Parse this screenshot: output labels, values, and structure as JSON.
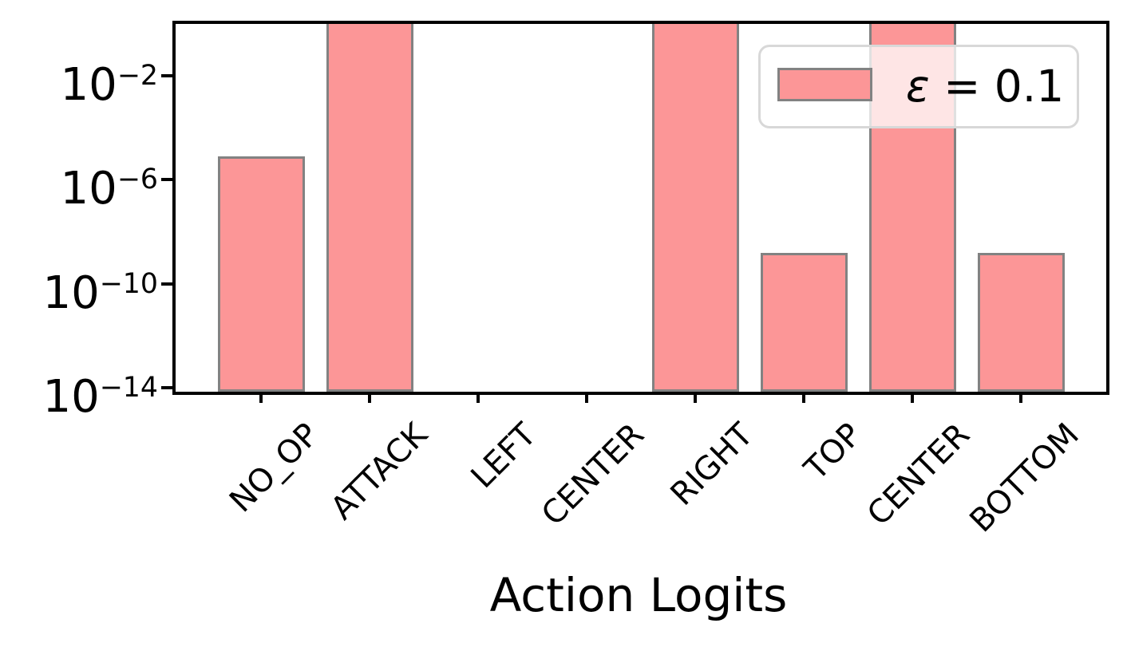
{
  "figure": {
    "background": "#ffffff"
  },
  "chart_data": {
    "type": "bar",
    "title": "",
    "xlabel": "Action Logits",
    "ylabel": "",
    "yscale": "log",
    "ylim": [
      1e-14,
      1.0
    ],
    "grid": false,
    "legend_position": "upper right",
    "categories": [
      "NO_OP",
      "ATTACK",
      "LEFT",
      "CENTER",
      "RIGHT",
      "TOP",
      "CENTER",
      "BOTTOM"
    ],
    "series": [
      {
        "name": "ε = 0.1",
        "values": [
          8e-06,
          1.0,
          null,
          null,
          1.0,
          1.5e-09,
          1.0,
          1.5e-09
        ],
        "clipped_at_top": [
          false,
          true,
          false,
          false,
          true,
          false,
          true,
          false
        ]
      }
    ],
    "yticks": [
      {
        "base": "10",
        "exp": "−2"
      },
      {
        "base": "10",
        "exp": "−6"
      },
      {
        "base": "10",
        "exp": "−10"
      },
      {
        "base": "10",
        "exp": "−14"
      }
    ],
    "legend": {
      "symbol": "ε",
      "rest": " = 0.1"
    },
    "colors": {
      "bar_fill": "#fc9697",
      "bar_edge": "#828282",
      "axis": "#000000",
      "legend_border": "#d8d8d8",
      "legend_background": "rgba(255,255,255,0.75)"
    }
  }
}
